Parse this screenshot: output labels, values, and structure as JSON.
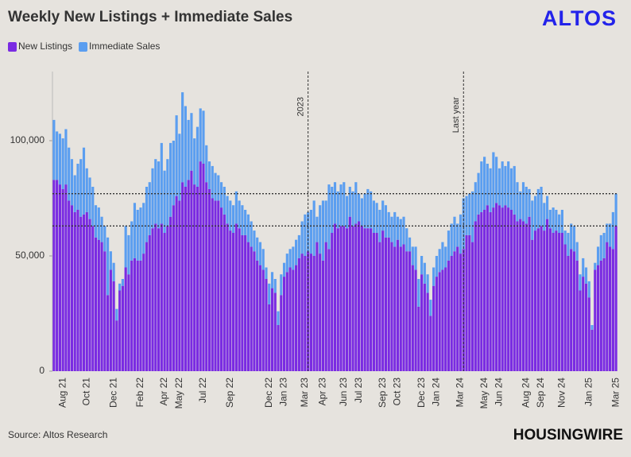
{
  "chart_data": {
    "type": "stacked-bar",
    "title": "Weekly New Listings + Immediate Sales",
    "brand": "ALTOS",
    "source": "Source: Altos Research",
    "publisher": "HOUSINGWIRE",
    "categories": [
      null,
      null,
      null,
      "Aug 21",
      null,
      null,
      null,
      null,
      null,
      null,
      null,
      "Oct 21",
      null,
      null,
      null,
      null,
      null,
      null,
      null,
      null,
      "Dec 21",
      null,
      null,
      null,
      null,
      null,
      null,
      null,
      null,
      "Feb 22",
      null,
      null,
      null,
      null,
      null,
      null,
      null,
      "Apr 22",
      null,
      null,
      null,
      null,
      "May 22",
      null,
      null,
      null,
      null,
      null,
      null,
      null,
      "Jul 22",
      null,
      null,
      null,
      null,
      null,
      null,
      null,
      null,
      "Sep 22",
      null,
      null,
      null,
      null,
      null,
      null,
      null,
      null,
      null,
      null,
      null,
      null,
      "Dec 22",
      null,
      null,
      null,
      null,
      "Jan 23",
      null,
      null,
      null,
      null,
      null,
      null,
      "Mar 23",
      null,
      null,
      null,
      null,
      null,
      "Apr 23",
      null,
      null,
      null,
      null,
      null,
      null,
      "Jun 23",
      null,
      null,
      null,
      null,
      "Jul 23",
      null,
      null,
      null,
      null,
      null,
      null,
      null,
      "Sep 23",
      null,
      null,
      null,
      null,
      "Oct 23",
      null,
      null,
      null,
      null,
      null,
      null,
      null,
      "Dec 23",
      null,
      null,
      null,
      null,
      "Jan 24",
      null,
      null,
      null,
      null,
      null,
      null,
      null,
      "Mar 24",
      null,
      null,
      null,
      null,
      null,
      null,
      null,
      "May 24",
      null,
      null,
      null,
      null,
      "Jun 24",
      null,
      null,
      null,
      null,
      null,
      null,
      null,
      null,
      "Aug 24",
      null,
      null,
      null,
      null,
      "Sep 24",
      null,
      null,
      null,
      null,
      null,
      null,
      "Nov 24",
      null,
      null,
      null,
      null,
      null,
      null,
      null,
      null,
      "Jan 25",
      null,
      null,
      null,
      null,
      null,
      null,
      null,
      null,
      "Mar 25"
    ],
    "series": [
      {
        "name": "New Listings",
        "color": "#7a2be2",
        "values": [
          83000,
          83000,
          81000,
          79000,
          81000,
          74000,
          72000,
          69000,
          70000,
          67000,
          68000,
          69000,
          66000,
          63000,
          58000,
          57000,
          56000,
          52000,
          33000,
          44000,
          39000,
          22000,
          35000,
          37000,
          45000,
          42000,
          48000,
          49000,
          48000,
          48000,
          51000,
          56000,
          59000,
          62000,
          64000,
          62000,
          64000,
          60000,
          63000,
          67000,
          72000,
          76000,
          74000,
          82000,
          80000,
          83000,
          87000,
          81000,
          80000,
          91000,
          90000,
          82000,
          79000,
          75000,
          74000,
          74000,
          71000,
          68000,
          64000,
          61000,
          60000,
          64000,
          62000,
          59000,
          59000,
          56000,
          54000,
          52000,
          48000,
          46000,
          44000,
          40000,
          29000,
          36000,
          34000,
          20000,
          33000,
          41000,
          43000,
          45000,
          44000,
          46000,
          49000,
          51000,
          50000,
          52000,
          51000,
          50000,
          56000,
          51000,
          48000,
          56000,
          53000,
          60000,
          64000,
          62000,
          63000,
          63000,
          62000,
          67000,
          63000,
          64000,
          65000,
          63000,
          62000,
          62000,
          62000,
          60000,
          60000,
          56000,
          61000,
          58000,
          58000,
          56000,
          54000,
          57000,
          54000,
          55000,
          52000,
          52000,
          46000,
          44000,
          28000,
          42000,
          38000,
          34000,
          24000,
          37000,
          41000,
          43000,
          44000,
          45000,
          48000,
          50000,
          52000,
          54000,
          51000,
          53000,
          59000,
          59000,
          56000,
          65000,
          68000,
          69000,
          70000,
          72000,
          69000,
          71000,
          73000,
          72000,
          71000,
          72000,
          71000,
          70000,
          68000,
          65000,
          66000,
          65000,
          64000,
          67000,
          57000,
          61000,
          62000,
          63000,
          61000,
          66000,
          62000,
          60000,
          61000,
          60000,
          60000,
          55000,
          50000,
          53000,
          52000,
          48000,
          35000,
          41000,
          38000,
          32000,
          18000,
          44000,
          46000,
          48000,
          49000,
          56000,
          54000,
          53000,
          63000
        ]
      },
      {
        "name": "Immediate Sales",
        "color": "#5b9ef0",
        "values": [
          26000,
          21000,
          22000,
          22000,
          24000,
          23000,
          20000,
          16000,
          20000,
          25000,
          29000,
          19000,
          18000,
          17000,
          14000,
          14000,
          11000,
          11000,
          25000,
          8000,
          8000,
          5000,
          3000,
          3000,
          18000,
          17000,
          17000,
          24000,
          22000,
          23000,
          22000,
          24000,
          23000,
          26000,
          28000,
          29000,
          35000,
          27000,
          29000,
          32000,
          28000,
          35000,
          29000,
          39000,
          35000,
          26000,
          25000,
          20000,
          26000,
          23000,
          23000,
          16000,
          12000,
          14000,
          12000,
          11000,
          11000,
          12000,
          12000,
          13000,
          12000,
          14000,
          12000,
          13000,
          11000,
          12000,
          11000,
          9000,
          10000,
          10000,
          9000,
          5000,
          9000,
          7000,
          6000,
          6000,
          9000,
          6000,
          8000,
          8000,
          10000,
          11000,
          10000,
          14000,
          18000,
          17000,
          19000,
          24000,
          11000,
          21000,
          26000,
          18000,
          28000,
          20000,
          18000,
          16000,
          18000,
          19000,
          14000,
          13000,
          15000,
          18000,
          12000,
          12000,
          15000,
          17000,
          16000,
          14000,
          13000,
          14000,
          13000,
          14000,
          11000,
          11000,
          15000,
          10000,
          12000,
          12000,
          10000,
          6000,
          8000,
          10000,
          12000,
          8000,
          9000,
          8000,
          7000,
          8000,
          9000,
          10000,
          12000,
          9000,
          13000,
          14000,
          15000,
          10000,
          17000,
          22000,
          17000,
          18000,
          22000,
          17000,
          18000,
          22000,
          23000,
          18000,
          19000,
          24000,
          20000,
          16000,
          20000,
          17000,
          20000,
          18000,
          21000,
          17000,
          12000,
          17000,
          16000,
          12000,
          17000,
          15000,
          17000,
          17000,
          12000,
          10000,
          8000,
          11000,
          9000,
          8000,
          10000,
          6000,
          10000,
          11000,
          11000,
          8000,
          7000,
          8000,
          7000,
          7000,
          2000,
          3000,
          8000,
          11000,
          11000,
          8000,
          10000,
          16000,
          14000
        ]
      }
    ],
    "ylim": [
      0,
      130000
    ],
    "yticks": [
      0,
      {
        "value": 50000,
        "label": "50,000"
      },
      {
        "value": 100000,
        "label": "100,000"
      }
    ],
    "hlines": [
      77000,
      63000
    ],
    "annotations": [
      {
        "label": "2023",
        "index": 85
      },
      {
        "label": "Last year",
        "index": 137
      }
    ],
    "legend": "top-left"
  }
}
